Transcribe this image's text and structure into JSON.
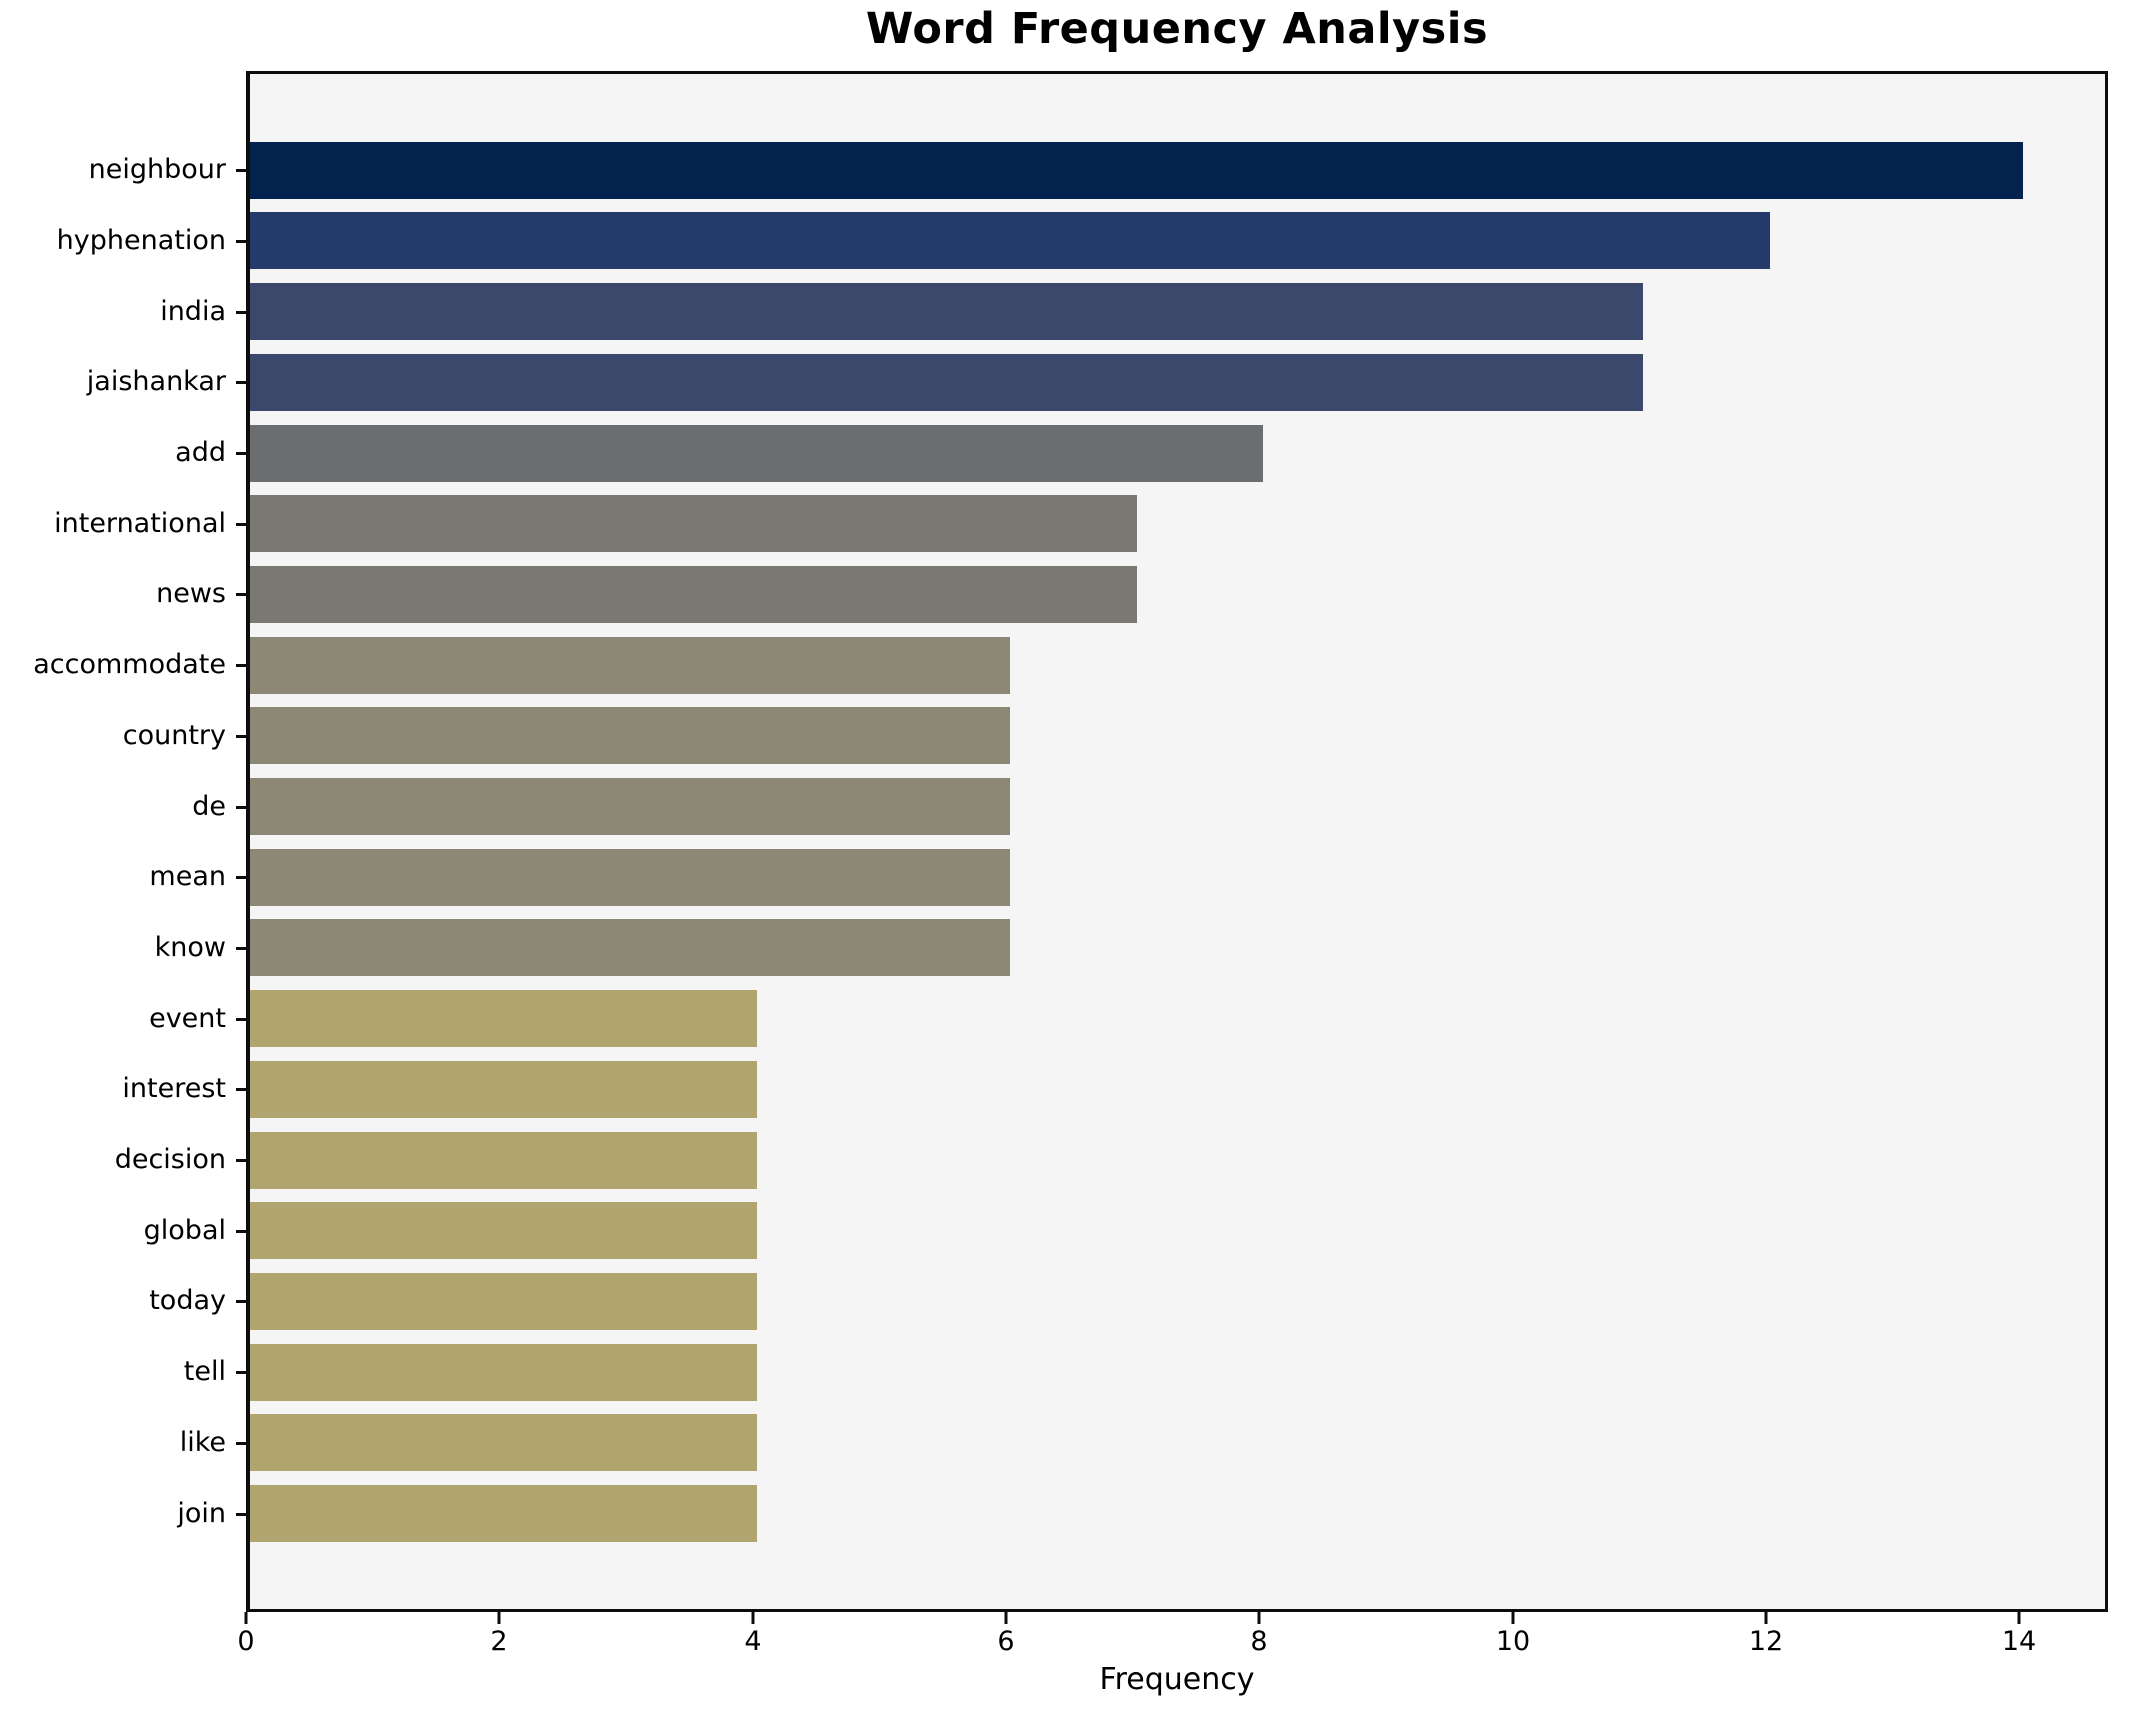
{
  "chart_data": {
    "type": "bar",
    "orientation": "horizontal",
    "title": "Word Frequency Analysis",
    "xlabel": "Frequency",
    "ylabel": "",
    "xlim": [
      0,
      14.7
    ],
    "xticks": [
      0,
      2,
      4,
      6,
      8,
      10,
      12,
      14
    ],
    "grid": false,
    "legend": false,
    "plot_background": "#f5f5f6",
    "frame_color": "#0d0d0d",
    "categories": [
      "neighbour",
      "hyphenation",
      "india",
      "jaishankar",
      "add",
      "international",
      "news",
      "accommodate",
      "country",
      "de",
      "mean",
      "know",
      "event",
      "interest",
      "decision",
      "global",
      "today",
      "tell",
      "like",
      "join"
    ],
    "values": [
      14,
      12,
      11,
      11,
      8,
      7,
      7,
      6,
      6,
      6,
      6,
      6,
      4,
      4,
      4,
      4,
      4,
      4,
      4,
      4
    ],
    "bar_colors": [
      "#03234e",
      "#233a6a",
      "#3b486c",
      "#3b486c",
      "#6c6d71",
      "#7a7870",
      "#7a7870",
      "#8d8776",
      "#8d8776",
      "#8d8776",
      "#8d8776",
      "#8d8776",
      "#b1a56f",
      "#b1a56f",
      "#b1a56f",
      "#b1a56f",
      "#b1a56f",
      "#b1a56f",
      "#b1a56f",
      "#b1a56f"
    ]
  }
}
